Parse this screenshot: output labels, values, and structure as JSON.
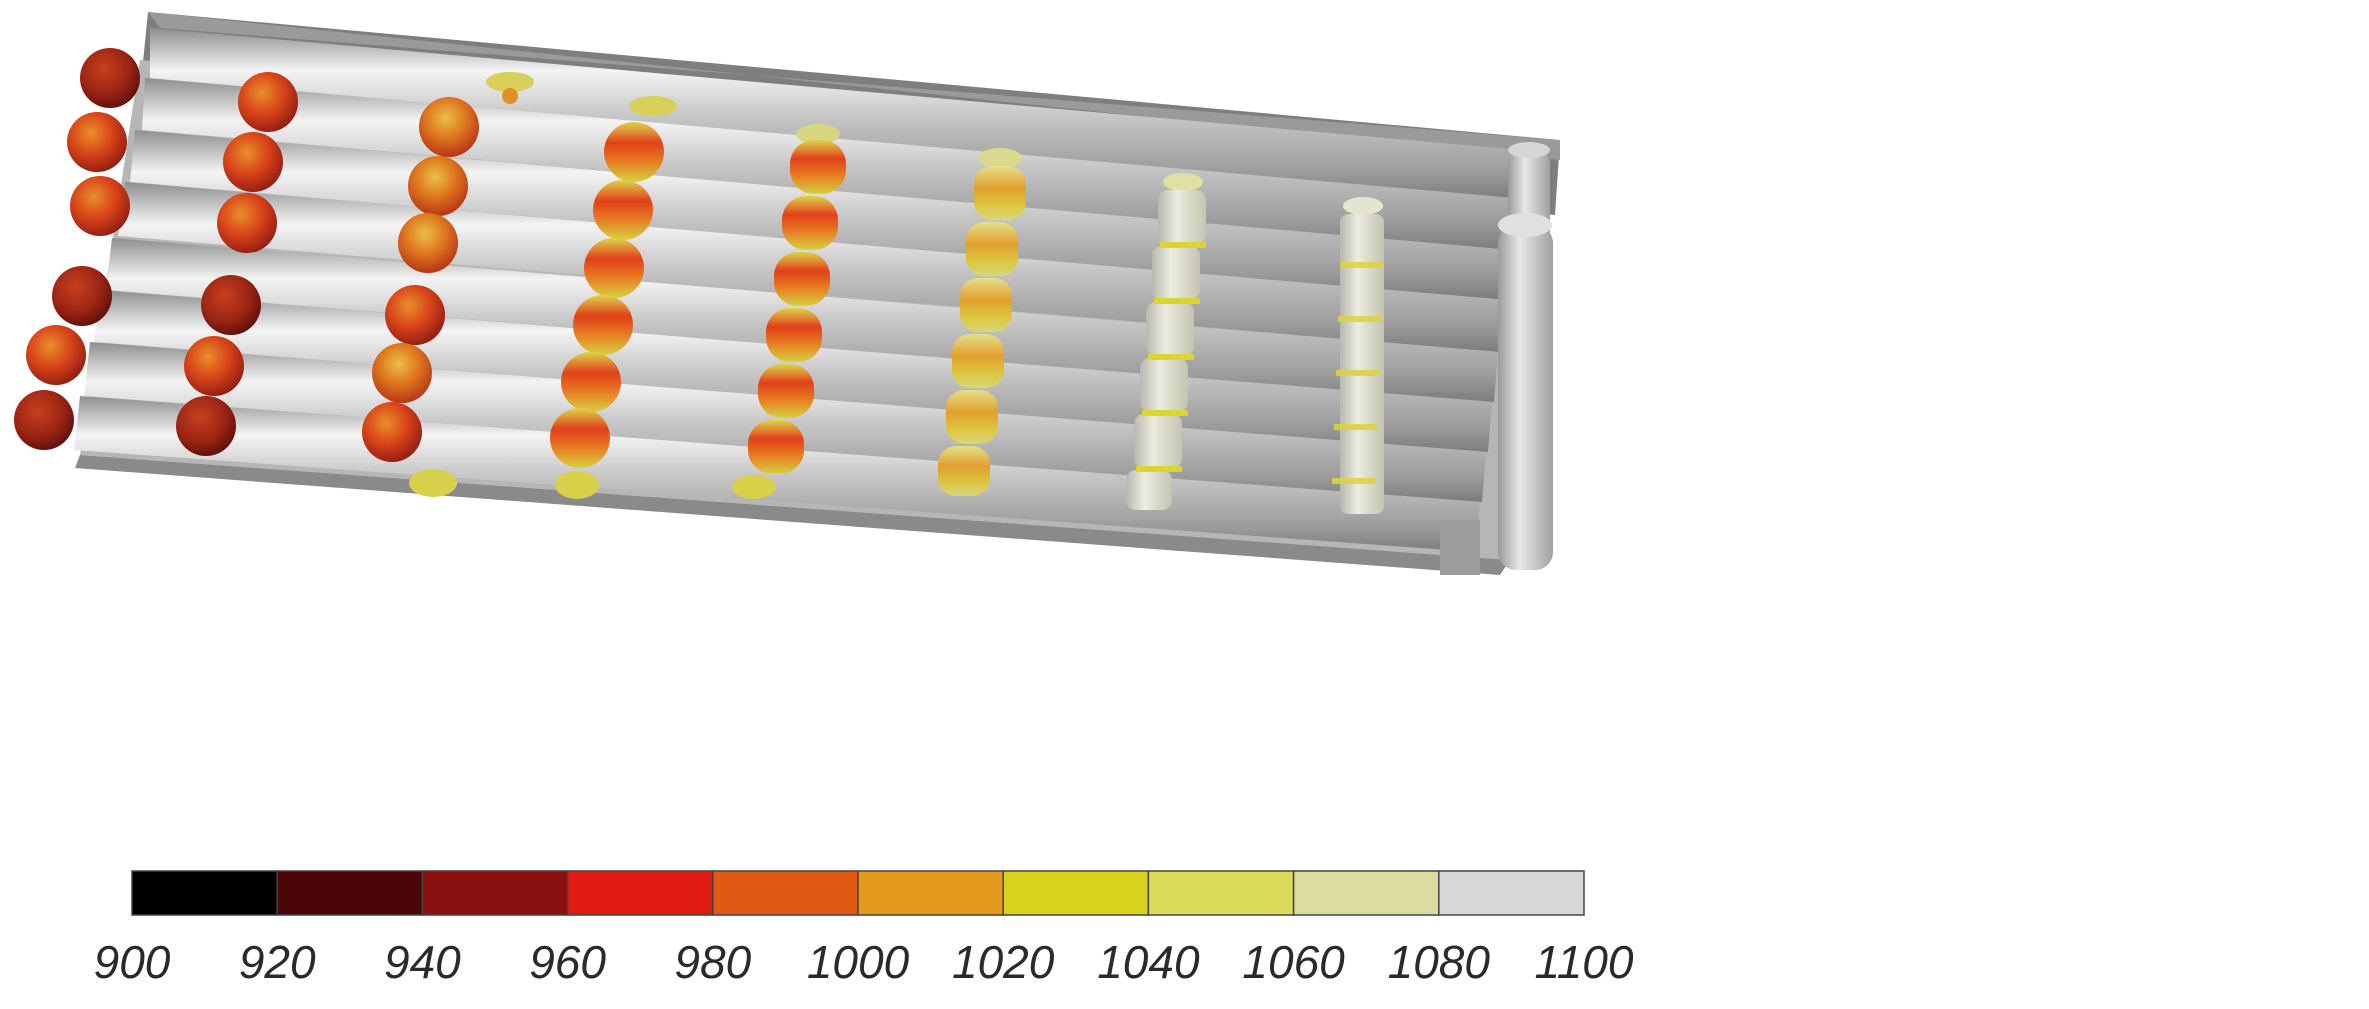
{
  "legend": {
    "tick_labels": [
      "900",
      "920",
      "940",
      "960",
      "980",
      "1000",
      "1020",
      "1040",
      "1060",
      "1080",
      "1100"
    ],
    "bin_colors": [
      "#000000",
      "#4a0606",
      "#8b1010",
      "#e31a12",
      "#e05a14",
      "#e49a1c",
      "#d9d21c",
      "#dcdc5c",
      "#dcdca0",
      "#d8d8d8"
    ]
  },
  "scene": {
    "tube_color": "#c4c4c4",
    "frame_color": "#8a8a8a",
    "particle_palette": [
      "#7a1d12",
      "#b8281a",
      "#d94418",
      "#e0a020",
      "#dcd43c",
      "#d4d4d4"
    ]
  }
}
